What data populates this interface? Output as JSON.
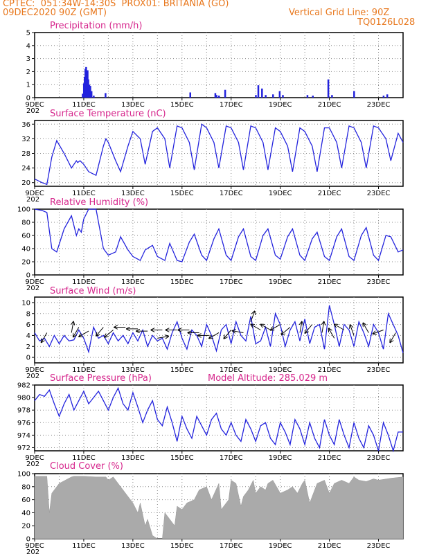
{
  "header": {
    "line1": "CPTEC:  051:34W-14:30S  PROX01: BRITANIA (GO)",
    "line2_left": "09DEC2020 90Z (GMT)",
    "line2_right": "Vertical Grid Line: 90Z",
    "line3_right": "TQ0126L028"
  },
  "x_axis": {
    "tick_labels": [
      "9DEC",
      "11DEC",
      "13DEC",
      "15DEC",
      "17DEC",
      "19DEC",
      "21DEC",
      "23DEC"
    ],
    "overlap_label": "202",
    "range_days": [
      0,
      15
    ]
  },
  "colors": {
    "series": "#2222dd",
    "cloud": "#aaaaaa",
    "title": "#d6268c",
    "header": "#e8781e"
  },
  "chart_data": [
    {
      "type": "bar",
      "title": "Precipitation (mm/h)",
      "ylim": [
        0,
        5
      ],
      "yticks": [
        0,
        1,
        2,
        3,
        4,
        5
      ],
      "bars": [
        [
          1.95,
          0.3
        ],
        [
          2.0,
          1.1
        ],
        [
          2.03,
          1.6
        ],
        [
          2.06,
          2.2
        ],
        [
          2.09,
          2.35
        ],
        [
          2.12,
          1.8
        ],
        [
          2.15,
          2.1
        ],
        [
          2.18,
          1.4
        ],
        [
          2.22,
          1.0
        ],
        [
          2.26,
          0.9
        ],
        [
          2.31,
          0.5
        ],
        [
          2.4,
          0.15
        ],
        [
          2.88,
          0.35
        ],
        [
          6.33,
          0.4
        ],
        [
          7.35,
          0.35
        ],
        [
          7.4,
          0.2
        ],
        [
          7.5,
          0.15
        ],
        [
          7.75,
          0.6
        ],
        [
          9.0,
          0.2
        ],
        [
          9.1,
          0.95
        ],
        [
          9.25,
          0.7
        ],
        [
          9.4,
          0.2
        ],
        [
          9.7,
          0.25
        ],
        [
          9.97,
          0.5
        ],
        [
          10.1,
          0.2
        ],
        [
          11.1,
          0.2
        ],
        [
          11.32,
          0.15
        ],
        [
          11.95,
          1.4
        ],
        [
          12.1,
          0.2
        ],
        [
          13.0,
          0.5
        ],
        [
          14.2,
          0.15
        ],
        [
          14.35,
          0.25
        ]
      ]
    },
    {
      "type": "line",
      "title": "Surface Temperature (nC)",
      "ylim": [
        19,
        37
      ],
      "yticks": [
        20,
        24,
        28,
        32,
        36
      ],
      "x": [
        0,
        0.3,
        0.5,
        0.7,
        0.9,
        1.2,
        1.5,
        1.7,
        1.75,
        1.85,
        2.0,
        2.2,
        2.5,
        2.8,
        2.9,
        3.0,
        3.3,
        3.5,
        3.8,
        4.0,
        4.3,
        4.5,
        4.8,
        5.0,
        5.3,
        5.5,
        5.8,
        6.0,
        6.3,
        6.5,
        6.8,
        7.0,
        7.3,
        7.5,
        7.8,
        8.0,
        8.3,
        8.5,
        8.8,
        9.0,
        9.3,
        9.5,
        9.8,
        10.0,
        10.3,
        10.5,
        10.8,
        11.0,
        11.3,
        11.5,
        11.8,
        12.0,
        12.3,
        12.5,
        12.8,
        13.0,
        13.3,
        13.5,
        13.8,
        14.0,
        14.3,
        14.5,
        14.8,
        15.0
      ],
      "values": [
        21,
        20,
        19.5,
        27,
        31.5,
        28,
        24,
        26,
        25.5,
        26,
        25,
        23,
        22,
        30,
        32,
        31,
        26,
        23,
        30,
        34,
        32,
        25,
        34,
        35,
        32,
        24,
        35.5,
        35,
        31,
        23.5,
        36,
        35,
        31,
        24,
        35.5,
        35,
        31,
        23.5,
        35.5,
        35,
        31,
        23.5,
        35,
        34,
        30,
        23,
        35,
        34,
        30,
        23,
        35,
        35,
        31,
        24,
        35.5,
        35,
        31,
        24,
        35.5,
        35,
        32,
        26,
        33.5,
        31
      ]
    },
    {
      "type": "line",
      "title": "Relative Humidity (%)",
      "ylim": [
        0,
        100
      ],
      "yticks": [
        0,
        20,
        40,
        60,
        80,
        100
      ],
      "x": [
        0,
        0.3,
        0.5,
        0.7,
        0.9,
        1.2,
        1.5,
        1.7,
        1.8,
        1.9,
        2.0,
        2.2,
        2.5,
        2.8,
        3.0,
        3.3,
        3.5,
        3.8,
        4.0,
        4.3,
        4.5,
        4.8,
        5.0,
        5.3,
        5.5,
        5.8,
        6.0,
        6.3,
        6.5,
        6.8,
        7.0,
        7.3,
        7.5,
        7.8,
        8.0,
        8.3,
        8.5,
        8.8,
        9.0,
        9.3,
        9.5,
        9.8,
        10.0,
        10.3,
        10.5,
        10.8,
        11.0,
        11.3,
        11.5,
        11.8,
        12.0,
        12.3,
        12.5,
        12.8,
        13.0,
        13.3,
        13.5,
        13.8,
        14.0,
        14.3,
        14.5,
        14.8,
        15.0
      ],
      "values": [
        100,
        98,
        95,
        40,
        35,
        70,
        90,
        60,
        70,
        65,
        85,
        100,
        100,
        40,
        30,
        35,
        58,
        38,
        28,
        22,
        38,
        45,
        28,
        22,
        48,
        22,
        20,
        50,
        62,
        30,
        22,
        55,
        70,
        30,
        22,
        58,
        70,
        28,
        22,
        60,
        70,
        30,
        24,
        58,
        70,
        30,
        22,
        55,
        65,
        28,
        22,
        58,
        70,
        28,
        22,
        60,
        72,
        30,
        22,
        60,
        58,
        35,
        38
      ]
    },
    {
      "type": "line",
      "title": "Surface Wind (m/s)",
      "ylim": [
        -1,
        11
      ],
      "yticks": [
        0,
        2,
        4,
        6,
        8,
        10
      ],
      "x": [
        0,
        0.2,
        0.4,
        0.6,
        0.8,
        1.0,
        1.2,
        1.4,
        1.6,
        1.8,
        2.0,
        2.2,
        2.4,
        2.6,
        2.8,
        3.0,
        3.2,
        3.4,
        3.6,
        3.8,
        4.0,
        4.2,
        4.4,
        4.6,
        4.8,
        5.0,
        5.2,
        5.4,
        5.6,
        5.8,
        6.0,
        6.2,
        6.4,
        6.6,
        6.8,
        7.0,
        7.2,
        7.4,
        7.6,
        7.8,
        8.0,
        8.2,
        8.4,
        8.6,
        8.8,
        9.0,
        9.2,
        9.4,
        9.6,
        9.8,
        10.0,
        10.2,
        10.4,
        10.6,
        10.8,
        11.0,
        11.2,
        11.4,
        11.6,
        11.8,
        12.0,
        12.2,
        12.4,
        12.6,
        12.8,
        13.0,
        13.2,
        13.4,
        13.6,
        13.8,
        14.0,
        14.2,
        14.4,
        14.6,
        14.8,
        15.0
      ],
      "values": [
        4.5,
        3,
        3.5,
        2,
        4,
        2.5,
        4,
        3,
        3.2,
        5,
        3.5,
        1,
        5.5,
        3.5,
        4,
        2.5,
        4.5,
        3,
        4,
        2.5,
        4.5,
        3,
        5,
        2,
        4,
        3,
        3.5,
        1.5,
        4.5,
        6.5,
        3.5,
        1.5,
        5,
        4,
        2,
        6,
        4,
        1.2,
        5,
        6,
        2.5,
        6.5,
        4,
        3,
        7.5,
        2.5,
        3,
        5.5,
        2,
        8,
        6,
        2,
        5,
        6.5,
        3,
        7,
        2.5,
        5.5,
        6,
        1.5,
        9.5,
        6,
        2,
        6,
        5,
        2,
        6.5,
        4.5,
        2,
        6,
        4.5,
        1.5,
        8,
        6,
        4,
        0.8
      ]
    },
    {
      "type": "line",
      "title": "Surface Pressure (hPa)",
      "annotation": "Model Altitude: 285.029 m",
      "ylim": [
        971.5,
        982
      ],
      "yticks": [
        972,
        974,
        976,
        978,
        980,
        982
      ],
      "x": [
        0,
        0.2,
        0.4,
        0.6,
        0.8,
        1.0,
        1.2,
        1.4,
        1.6,
        1.8,
        2.0,
        2.2,
        2.4,
        2.6,
        2.8,
        3.0,
        3.2,
        3.4,
        3.6,
        3.8,
        4.0,
        4.2,
        4.4,
        4.6,
        4.8,
        5.0,
        5.2,
        5.4,
        5.6,
        5.8,
        6.0,
        6.2,
        6.4,
        6.6,
        6.8,
        7.0,
        7.2,
        7.4,
        7.6,
        7.8,
        8.0,
        8.2,
        8.4,
        8.6,
        8.8,
        9.0,
        9.2,
        9.4,
        9.6,
        9.8,
        10.0,
        10.2,
        10.4,
        10.6,
        10.8,
        11.0,
        11.2,
        11.4,
        11.6,
        11.8,
        12.0,
        12.2,
        12.4,
        12.6,
        12.8,
        13.0,
        13.2,
        13.4,
        13.6,
        13.8,
        14.0,
        14.2,
        14.4,
        14.6,
        14.8,
        15.0
      ],
      "values": [
        979.5,
        980.5,
        980.2,
        981.2,
        979,
        977,
        979,
        980.5,
        978,
        979.5,
        981,
        979,
        980,
        981,
        979.5,
        978,
        980,
        981.5,
        979,
        978,
        980.8,
        978.5,
        976,
        978,
        979.5,
        976.5,
        975.5,
        978.5,
        976,
        973,
        977,
        975,
        973.5,
        977,
        975.5,
        974,
        976.5,
        977.5,
        975,
        974,
        976,
        974,
        973,
        976.5,
        975,
        973,
        975.5,
        976,
        973.5,
        972.5,
        976,
        974.5,
        972.5,
        976.5,
        975,
        972.5,
        976,
        973.5,
        972,
        976.5,
        974,
        972.5,
        976.5,
        974,
        972,
        976,
        973.5,
        972,
        975.5,
        974,
        971.5,
        976,
        974,
        971.5,
        974.5,
        974.5
      ]
    },
    {
      "type": "area",
      "title": "Cloud Cover (%)",
      "ylim": [
        0,
        100
      ],
      "yticks": [
        0,
        20,
        40,
        60,
        80,
        100
      ],
      "x": [
        0,
        0.5,
        0.6,
        0.7,
        1.0,
        1.5,
        1.6,
        2.0,
        2.5,
        2.9,
        3.0,
        3.2,
        3.5,
        3.8,
        4.0,
        4.2,
        4.3,
        4.5,
        4.6,
        4.8,
        5.0,
        5.2,
        5.3,
        5.5,
        5.7,
        5.8,
        6.0,
        6.2,
        6.5,
        6.7,
        7.0,
        7.2,
        7.5,
        7.6,
        7.9,
        8.0,
        8.2,
        8.4,
        8.5,
        8.7,
        8.9,
        9.0,
        9.2,
        9.4,
        9.5,
        9.7,
        10.0,
        10.3,
        10.5,
        10.7,
        10.9,
        11.0,
        11.2,
        11.5,
        11.8,
        12.0,
        12.2,
        12.5,
        12.8,
        13.0,
        13.2,
        13.5,
        13.8,
        14.0,
        14.5,
        15.0
      ],
      "values": [
        96,
        96,
        40,
        70,
        85,
        95,
        96,
        96,
        95,
        95,
        90,
        95,
        80,
        65,
        55,
        40,
        55,
        20,
        30,
        5,
        0,
        0,
        40,
        30,
        20,
        50,
        45,
        55,
        60,
        75,
        80,
        60,
        85,
        45,
        60,
        90,
        85,
        50,
        65,
        75,
        90,
        70,
        80,
        75,
        85,
        90,
        70,
        75,
        80,
        70,
        85,
        90,
        55,
        85,
        90,
        70,
        85,
        90,
        85,
        95,
        90,
        88,
        92,
        90,
        93,
        95
      ]
    },
    {
      "type": "scatter",
      "title": "Surface Wind direction arrows",
      "x": [
        0.5,
        1.5,
        1.8,
        2.2,
        2.8,
        3.2,
        3.7,
        4.2,
        4.6,
        5.0,
        5.2,
        5.8,
        6.3,
        6.7,
        7.1,
        7.5,
        8.0,
        8.5,
        8.8,
        9.2,
        9.6,
        10.0,
        10.4,
        10.8,
        11.3,
        11.7,
        12.2,
        12.6,
        13.0,
        13.6,
        14.2,
        14.7
      ],
      "y": [
        4.5,
        4.5,
        5.5,
        4.8,
        5.5,
        5,
        5.5,
        5.2,
        4.8,
        3.5,
        5,
        5,
        5,
        4.5,
        4,
        4.5,
        5,
        4.5,
        6.5,
        5,
        5,
        6,
        5.5,
        4.5,
        6,
        4.5,
        3.5,
        5,
        4,
        4.5,
        5,
        4.5
      ],
      "angle_deg": [
        -120,
        80,
        -120,
        -150,
        -130,
        -140,
        180,
        180,
        180,
        10,
        180,
        180,
        180,
        180,
        180,
        -150,
        -130,
        170,
        70,
        150,
        150,
        -150,
        -140,
        80,
        -130,
        80,
        120,
        150,
        110,
        120,
        -160,
        -120
      ]
    }
  ]
}
